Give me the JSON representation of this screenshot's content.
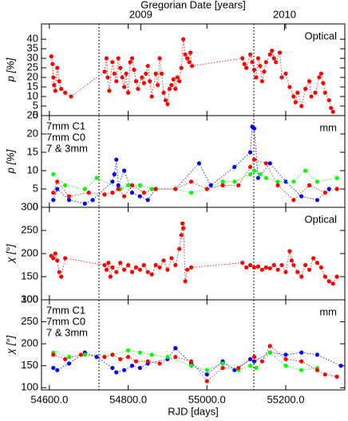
{
  "chart_data": [
    {
      "type": "scatter",
      "top_axis_label": "Gregorian Date [years]",
      "x2ticks": [
        {
          "value": 54832,
          "label": "2009"
        },
        {
          "value": 55197,
          "label": "2010"
        }
      ],
      "ylabel": "p [%]",
      "annotation": "Optical",
      "annotation_color": "#ff0000",
      "xlim": [
        54580,
        55350
      ],
      "ylim": [
        0,
        48
      ],
      "yticks": [
        0,
        5,
        10,
        15,
        20,
        25,
        30,
        35,
        40
      ],
      "vlines": [
        54726,
        55119
      ],
      "color": "#ff0000",
      "x": [
        54605,
        54608,
        54610,
        54612,
        54615,
        54620,
        54625,
        54630,
        54640,
        54655,
        54740,
        54745,
        54748,
        54752,
        54760,
        54765,
        54770,
        54775,
        54780,
        54785,
        54790,
        54795,
        54800,
        54805,
        54810,
        54815,
        54820,
        54825,
        54835,
        54840,
        54845,
        54850,
        54855,
        54860,
        54870,
        54875,
        54880,
        54885,
        54890,
        54895,
        54900,
        54905,
        54910,
        54915,
        54920,
        54925,
        54930,
        54935,
        54940,
        54945,
        54950,
        54955,
        54958,
        54962,
        55090,
        55095,
        55100,
        55110,
        55115,
        55120,
        55125,
        55130,
        55135,
        55140,
        55145,
        55150,
        55160,
        55165,
        55170,
        55175,
        55185,
        55190,
        55200,
        55210,
        55220,
        55225,
        55230,
        55240,
        55250,
        55260,
        55265,
        55275,
        55285,
        55290,
        55295,
        55300,
        55310,
        55315,
        55320
      ],
      "values": [
        31,
        27,
        20,
        16,
        13,
        25,
        18,
        14,
        12,
        10,
        23,
        30,
        20,
        13,
        28,
        22,
        18,
        30,
        25,
        20,
        15,
        22,
        12,
        28,
        30,
        24,
        18,
        14,
        20,
        17,
        22,
        26,
        18,
        10,
        22,
        16,
        30,
        22,
        12,
        8,
        6,
        14,
        16,
        19,
        14,
        20,
        18,
        25,
        40,
        32,
        30,
        28,
        33,
        26,
        30,
        27,
        25,
        32,
        28,
        24,
        20,
        30,
        26,
        18,
        23,
        28,
        32,
        34,
        30,
        28,
        33,
        20,
        22,
        15,
        10,
        7,
        12,
        5,
        14,
        18,
        10,
        12,
        20,
        22,
        17,
        12,
        8,
        4,
        2
      ]
    },
    {
      "type": "scatter",
      "ylabel": "p [%]",
      "annotation": "mm",
      "annotation_color": "#000000",
      "xlim": [
        54580,
        55350
      ],
      "ylim": [
        0,
        25
      ],
      "yticks": [
        0,
        5,
        10,
        15,
        20,
        25
      ],
      "vlines": [
        54726,
        55119
      ],
      "legend": "upper left",
      "series": [
        {
          "name": "7mm C1",
          "color": "#0000ff",
          "x": [
            54610,
            54620,
            54650,
            54690,
            54710,
            54760,
            54765,
            54770,
            54775,
            54790,
            54810,
            54830,
            54850,
            54870,
            54920,
            54980,
            55010,
            55070,
            55110,
            55115,
            55120,
            55130,
            55160,
            55200,
            55240,
            55280,
            55310
          ],
          "values": [
            2,
            5,
            2,
            1,
            2,
            7,
            9,
            13,
            6,
            10,
            4,
            3,
            2,
            5,
            5,
            12,
            6,
            11,
            15,
            22,
            21.5,
            8,
            12,
            7,
            3,
            2,
            5
          ]
        },
        {
          "name": "7mm C0",
          "color": "#00ff00",
          "x": [
            54610,
            54640,
            54690,
            54720,
            54780,
            54800,
            54830,
            54860,
            54920,
            54960,
            55000,
            55040,
            55070,
            55110,
            55120,
            55135,
            55150,
            55180,
            55220,
            55250,
            55280,
            55330
          ],
          "values": [
            9,
            6,
            5,
            8,
            5,
            6,
            6,
            5,
            5,
            4,
            5,
            7,
            7,
            9,
            10,
            9,
            8,
            7,
            7,
            10,
            7,
            8
          ]
        },
        {
          "name": "7 & 3mm",
          "color": "#ff0000",
          "x": [
            54610,
            54620,
            54650,
            54700,
            54740,
            54760,
            54775,
            54790,
            54810,
            54840,
            54870,
            54920,
            54960,
            55000,
            55040,
            55080,
            55110,
            55120,
            55150,
            55180,
            55220,
            55260,
            55300,
            55330
          ],
          "values": [
            4,
            7,
            3,
            4,
            3.5,
            4,
            5,
            3,
            6,
            4,
            5,
            5,
            7,
            5,
            6,
            6,
            11,
            13,
            12,
            6,
            2,
            6,
            4,
            5
          ]
        }
      ]
    },
    {
      "type": "scatter",
      "ylabel": "χ [°]",
      "annotation": "Optical",
      "annotation_color": "#ff0000",
      "xlim": [
        54580,
        55350
      ],
      "ylim": [
        100,
        300
      ],
      "yticks": [
        100,
        150,
        200,
        250,
        300
      ],
      "vlines": [
        54726,
        55119
      ],
      "color": "#ff0000",
      "x": [
        54605,
        54610,
        54615,
        54620,
        54625,
        54630,
        54640,
        54740,
        54745,
        54750,
        54755,
        54760,
        54770,
        54780,
        54790,
        54800,
        54810,
        54820,
        54830,
        54840,
        54850,
        54860,
        54870,
        54880,
        54890,
        54900,
        54910,
        54920,
        54930,
        54935,
        54938,
        54940,
        54945,
        54950,
        54960,
        55090,
        55100,
        55110,
        55120,
        55130,
        55140,
        55150,
        55160,
        55170,
        55180,
        55190,
        55200,
        55210,
        55215,
        55220,
        55230,
        55240,
        55250,
        55260,
        55270,
        55280,
        55290,
        55300,
        55310,
        55320,
        55330
      ],
      "values": [
        195,
        190,
        200,
        185,
        160,
        150,
        190,
        175,
        165,
        180,
        150,
        170,
        160,
        180,
        165,
        175,
        160,
        170,
        165,
        175,
        160,
        155,
        175,
        170,
        185,
        165,
        190,
        175,
        210,
        240,
        265,
        255,
        140,
        165,
        170,
        180,
        170,
        175,
        170,
        172,
        165,
        170,
        168,
        175,
        165,
        175,
        160,
        205,
        185,
        175,
        160,
        150,
        175,
        165,
        190,
        180,
        170,
        150,
        140,
        135,
        150
      ]
    },
    {
      "type": "scatter",
      "ylabel": "χ [°]",
      "annotation": "mm",
      "annotation_color": "#000000",
      "xlabel": "RJD [days]",
      "xticks": [
        {
          "value": 54600,
          "label": "54600.0"
        },
        {
          "value": 54800,
          "label": "54800.0"
        },
        {
          "value": 55000,
          "label": "55000.0"
        },
        {
          "value": 55200,
          "label": "55200.0"
        }
      ],
      "xlim": [
        54580,
        55350
      ],
      "ylim": [
        95,
        300
      ],
      "yticks": [
        100,
        150,
        200,
        250,
        300
      ],
      "vlines": [
        54726,
        55119
      ],
      "legend": "upper left",
      "series": [
        {
          "name": "7mm C1",
          "color": "#0000ff",
          "x": [
            54610,
            54620,
            54650,
            54690,
            54720,
            54760,
            54770,
            54790,
            54810,
            54830,
            54850,
            54900,
            54920,
            54960,
            55000,
            55040,
            55070,
            55110,
            55120,
            55160,
            55200,
            55240,
            55280,
            55340
          ],
          "values": [
            145,
            140,
            155,
            180,
            170,
            145,
            135,
            140,
            150,
            145,
            155,
            165,
            190,
            155,
            130,
            160,
            140,
            165,
            160,
            180,
            175,
            180,
            175,
            150
          ]
        },
        {
          "name": "7mm C0",
          "color": "#00ff00",
          "x": [
            54610,
            54650,
            54690,
            54760,
            54800,
            54830,
            54860,
            54900,
            54960,
            55000,
            55040,
            55080,
            55110,
            55125,
            55160,
            55200,
            55240,
            55280
          ],
          "values": [
            180,
            170,
            175,
            175,
            185,
            180,
            175,
            170,
            150,
            140,
            155,
            140,
            150,
            145,
            180,
            150,
            140,
            145
          ]
        },
        {
          "name": "7 & 3mm",
          "color": "#ff0000",
          "x": [
            54610,
            54640,
            54680,
            54740,
            54760,
            54780,
            54800,
            54820,
            54850,
            54880,
            54920,
            54960,
            55000,
            55040,
            55080,
            55120,
            55140,
            55160,
            55200,
            55240,
            55280,
            55300,
            55330
          ],
          "values": [
            175,
            165,
            175,
            170,
            175,
            165,
            170,
            160,
            160,
            155,
            170,
            160,
            115,
            145,
            145,
            170,
            160,
            195,
            165,
            160,
            140,
            130,
            125
          ]
        }
      ]
    }
  ]
}
